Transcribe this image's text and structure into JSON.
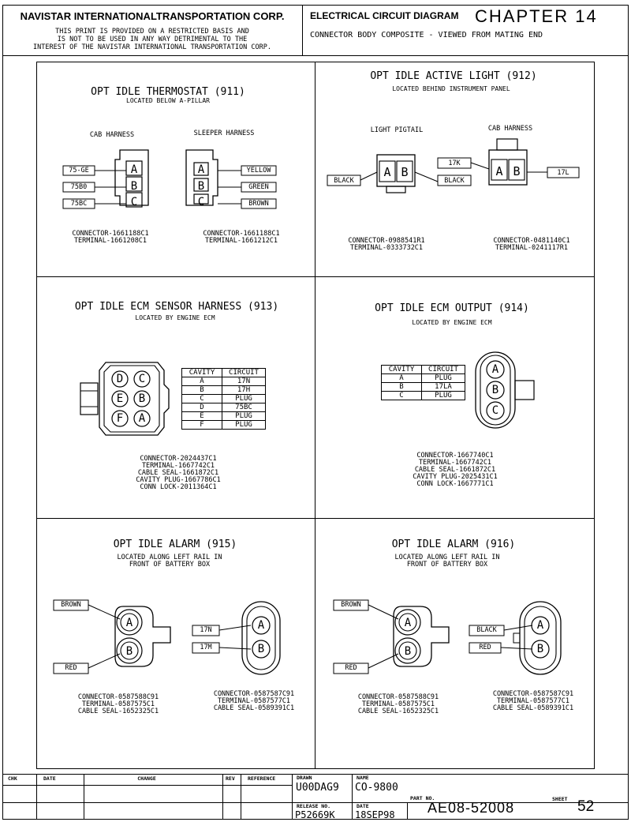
{
  "header": {
    "company": "NAVISTAR INTERNATIONALTRANSPORTATION CORP.",
    "notice_lines": [
      "THIS PRINT IS PROVIDED ON A RESTRICTED BASIS AND",
      "IS NOT TO BE USED IN ANY WAY DETRIMENTAL TO THE",
      "INTEREST OF THE NAVISTAR INTERNATIONAL TRANSPORTATION CORP."
    ],
    "diagram_type": "ELECTRICAL CIRCUIT DIAGRAM",
    "chapter": "CHAPTER 14",
    "subtitle": "CONNECTOR BODY COMPOSITE - VIEWED FROM MATING END"
  },
  "panels": {
    "p911": {
      "title": "OPT IDLE THERMOSTAT (911)",
      "location": "LOCATED BELOW A-PILLAR",
      "cab_label": "CAB HARNESS",
      "sleeper_label": "SLEEPER HARNESS",
      "cab_wires": [
        "75-GE",
        "75B0",
        "75BC"
      ],
      "cab_cavities": [
        "A",
        "B",
        "C"
      ],
      "sleeper_cavities": [
        "A",
        "B",
        "C"
      ],
      "sleeper_wires": [
        "YELLOW",
        "GREEN",
        "BROWN"
      ],
      "cab_parts": "CONNECTOR-1661188C1\nTERMINAL-1661208C1",
      "sleeper_parts": "CONNECTOR-1661188C1\nTERMINAL-1661212C1"
    },
    "p912": {
      "title": "OPT IDLE ACTIVE LIGHT (912)",
      "location": "LOCATED BEHIND INSTRUMENT PANEL",
      "pigtail_label": "LIGHT PIGTAIL",
      "cab_label": "CAB HARNESS",
      "pigtail_cavities": [
        "A",
        "B"
      ],
      "cab_cavities": [
        "A",
        "B"
      ],
      "wire_black_left": "BLACK",
      "wire_17k": "17K",
      "wire_black_right": "BLACK",
      "wire_17l": "17L",
      "pigtail_parts": "CONNECTOR-0988541R1\nTERMINAL-0333732C1",
      "cab_parts": "CONNECTOR-0481140C1\nTERMINAL-0241117R1"
    },
    "p913": {
      "title": "OPT IDLE ECM SENSOR HARNESS (913)",
      "location": "LOCATED BY ENGINE ECM",
      "cavities": [
        "D",
        "C",
        "E",
        "B",
        "F",
        "A"
      ],
      "table_headers": [
        "CAVITY",
        "CIRCUIT"
      ],
      "table_rows": [
        [
          "A",
          "17N"
        ],
        [
          "B",
          "17H"
        ],
        [
          "C",
          "PLUG"
        ],
        [
          "D",
          "75BC"
        ],
        [
          "E",
          "PLUG"
        ],
        [
          "F",
          "PLUG"
        ]
      ],
      "parts": "CONNECTOR-2024437C1\nTERMINAL-1667742C1\nCABLE SEAL-1661872C1\nCAVITY PLUG-1667786C1\nCONN LOCK-2011364C1"
    },
    "p914": {
      "title": "OPT IDLE ECM OUTPUT (914)",
      "location": "LOCATED BY ENGINE ECM",
      "cavities": [
        "A",
        "B",
        "C"
      ],
      "table_headers": [
        "CAVITY",
        "CIRCUIT"
      ],
      "table_rows": [
        [
          "A",
          "PLUG"
        ],
        [
          "B",
          "17LA"
        ],
        [
          "C",
          "PLUG"
        ]
      ],
      "parts": "CONNECTOR-1667740C1\nTERMINAL-1667742C1\nCABLE SEAL-1661872C1\nCAVITY PLUG-2025431C1\nCONN LOCK-1667771C1"
    },
    "p915": {
      "title": "OPT IDLE ALARM (915)",
      "location": "LOCATED ALONG LEFT RAIL IN\nFRONT OF BATTERY BOX",
      "left_wires": [
        "BROWN",
        "RED"
      ],
      "left_cavities": [
        "A",
        "B"
      ],
      "right_wires": [
        "17N",
        "17M"
      ],
      "right_cavities": [
        "A",
        "B"
      ],
      "left_parts": "CONNECTOR-0587588C91\nTERMINAL-0587575C1\nCABLE SEAL-1652325C1",
      "right_parts": "CONNECTOR-0587587C91\nTERMINAL-0587577C1\nCABLE SEAL-0589391C1"
    },
    "p916": {
      "title": "OPT IDLE ALARM (916)",
      "location": "LOCATED ALONG LEFT RAIL IN\nFRONT OF BATTERY BOX",
      "left_wires": [
        "BROWN",
        "RED"
      ],
      "left_cavities": [
        "A",
        "B"
      ],
      "right_wires": [
        "BLACK",
        "RED"
      ],
      "right_cavities": [
        "A",
        "B"
      ],
      "left_parts": "CONNECTOR-0587588C91\nTERMINAL-0587575C1\nCABLE SEAL-1652325C1",
      "right_parts": "CONNECTOR-0587587C91\nTERMINAL-0587577C1\nCABLE SEAL-0589391C1"
    }
  },
  "title_block": {
    "headers": [
      "CHK",
      "DATE",
      "CHANGE",
      "REV",
      "REFERENCE"
    ],
    "drawn_label": "DRAWN",
    "drawn_value": "U00DAG9",
    "name_label": "NAME",
    "name_value": "CO-9800",
    "release_label": "RELEASE NO.",
    "release_value": "P52669K",
    "date_label": "DATE",
    "date_value": "18SEP98",
    "part_label": "PART NO.",
    "part_value": "AE08-52008",
    "sheet_label": "SHEET",
    "sheet_value": "52"
  }
}
